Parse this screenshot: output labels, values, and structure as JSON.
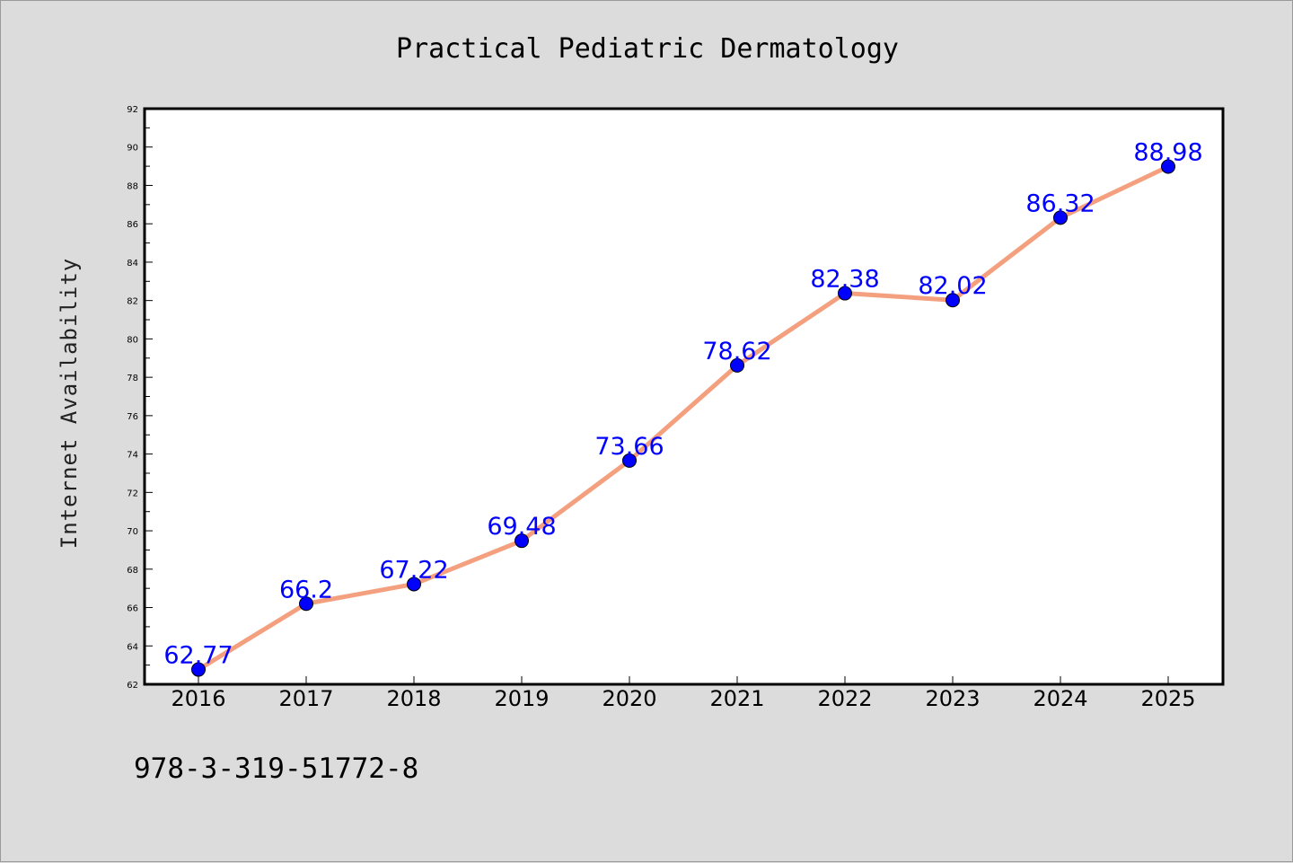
{
  "chart_data": {
    "type": "line",
    "title": "Practical Pediatric Dermatology",
    "ylabel": "Internet Availability",
    "xlabel": "",
    "categories": [
      "2016",
      "2017",
      "2018",
      "2019",
      "2020",
      "2021",
      "2022",
      "2023",
      "2024",
      "2025"
    ],
    "series": [
      {
        "values": [
          62.77,
          66.2,
          67.22,
          69.48,
          73.66,
          78.62,
          82.38,
          82.02,
          86.32,
          88.98
        ],
        "data_labels": [
          "62.77",
          "66.2",
          "67.22",
          "69.48",
          "73.66",
          "78.62",
          "82.38",
          "82.02",
          "86.32",
          "88.98"
        ]
      }
    ],
    "ylim": [
      62,
      92
    ],
    "yticks": [
      "62",
      "64",
      "66",
      "68",
      "70",
      "72",
      "74",
      "76",
      "78",
      "80",
      "82",
      "84",
      "86",
      "88",
      "90",
      "92"
    ],
    "grid": false,
    "legend": "none",
    "colors": {
      "line": "#f4a07e",
      "marker": "#0000ff",
      "data_label": "#0000ff",
      "background": "#dcdcdc",
      "plot_background": "#ffffff"
    }
  },
  "footnote": "978-3-319-51772-8"
}
